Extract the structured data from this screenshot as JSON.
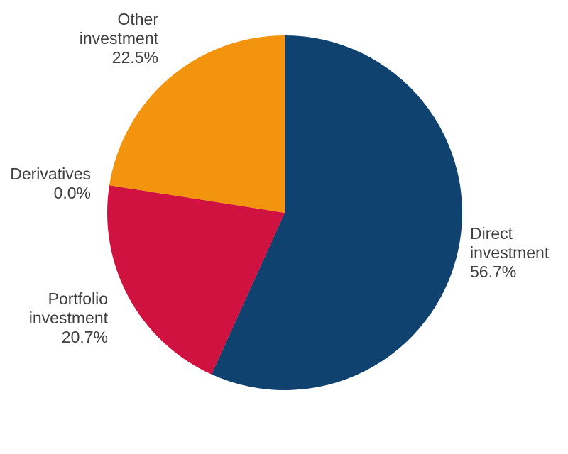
{
  "chart_data": {
    "type": "pie",
    "title": "",
    "start_at": "top",
    "direction": "clockwise",
    "legend": "none",
    "label_style": "outside",
    "background_color": "#ffffff",
    "label_text_color": "#3f3f3f",
    "slices": [
      {
        "name": "Direct investment",
        "value": 56.7,
        "pct_label": "56.7%",
        "color": "#0f426f"
      },
      {
        "name": "Portfolio investment",
        "value": 20.7,
        "pct_label": "20.7%",
        "color": "#d01240"
      },
      {
        "name": "Derivatives",
        "value": 0.0,
        "pct_label": "0.0%",
        "color": null
      },
      {
        "name": "Other investment",
        "value": 22.5,
        "pct_label": "22.5%",
        "color": "#f2940d"
      }
    ]
  }
}
